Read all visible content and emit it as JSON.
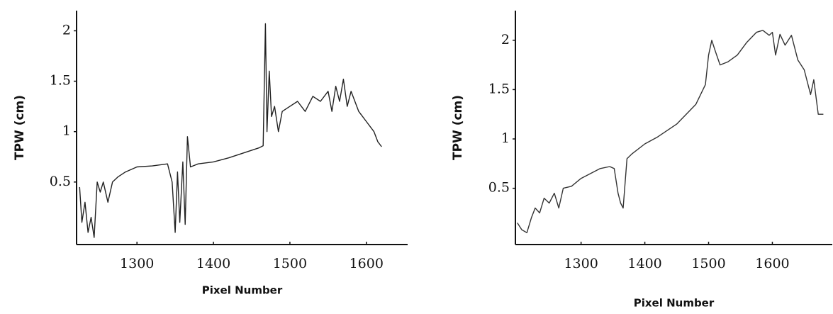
{
  "chart_data": [
    {
      "type": "line",
      "y_label": "TPW (cm)",
      "x_label": "Pixel Number",
      "color": "#222222",
      "x": [
        1225,
        1228,
        1232,
        1236,
        1240,
        1244,
        1248,
        1252,
        1256,
        1262,
        1268,
        1275,
        1285,
        1300,
        1320,
        1340,
        1346,
        1350,
        1353,
        1356,
        1360,
        1363,
        1366,
        1370,
        1380,
        1400,
        1420,
        1440,
        1460,
        1465,
        1468,
        1470,
        1473,
        1476,
        1480,
        1485,
        1490,
        1500,
        1510,
        1520,
        1530,
        1540,
        1550,
        1555,
        1560,
        1565,
        1570,
        1575,
        1580,
        1590,
        1600,
        1610,
        1615,
        1620
      ],
      "values": [
        0.45,
        0.1,
        0.3,
        0.0,
        0.15,
        -0.05,
        0.5,
        0.4,
        0.5,
        0.3,
        0.5,
        0.55,
        0.6,
        0.65,
        0.66,
        0.68,
        0.5,
        0.0,
        0.6,
        0.1,
        0.7,
        0.08,
        0.95,
        0.65,
        0.68,
        0.7,
        0.74,
        0.79,
        0.84,
        0.86,
        2.07,
        1.0,
        1.6,
        1.15,
        1.25,
        1.0,
        1.2,
        1.25,
        1.3,
        1.2,
        1.35,
        1.3,
        1.4,
        1.2,
        1.45,
        1.3,
        1.52,
        1.25,
        1.4,
        1.2,
        1.1,
        1.0,
        0.9,
        0.85
      ],
      "xlim": [
        1221,
        1654
      ],
      "ylim": [
        -0.12,
        2.2
      ],
      "xticks": [
        1300,
        1400,
        1500,
        1600
      ],
      "yticks": [
        0.5,
        1,
        1.5,
        2
      ]
    },
    {
      "type": "line",
      "y_label": "TPW (cm)",
      "x_label": "Pixel Number",
      "color": "#333333",
      "x": [
        1200,
        1207,
        1215,
        1222,
        1228,
        1235,
        1242,
        1250,
        1258,
        1265,
        1272,
        1285,
        1300,
        1315,
        1330,
        1345,
        1352,
        1358,
        1362,
        1366,
        1372,
        1380,
        1400,
        1420,
        1450,
        1480,
        1495,
        1500,
        1505,
        1510,
        1518,
        1530,
        1545,
        1560,
        1575,
        1585,
        1595,
        1600,
        1605,
        1612,
        1620,
        1630,
        1640,
        1650,
        1660,
        1665,
        1672,
        1680
      ],
      "values": [
        0.15,
        0.08,
        0.05,
        0.2,
        0.3,
        0.25,
        0.4,
        0.35,
        0.45,
        0.3,
        0.5,
        0.52,
        0.6,
        0.65,
        0.7,
        0.72,
        0.7,
        0.45,
        0.35,
        0.3,
        0.8,
        0.85,
        0.95,
        1.02,
        1.15,
        1.35,
        1.55,
        1.85,
        2.0,
        1.9,
        1.75,
        1.78,
        1.85,
        1.98,
        2.08,
        2.1,
        2.05,
        2.08,
        1.85,
        2.06,
        1.95,
        2.05,
        1.8,
        1.7,
        1.45,
        1.6,
        1.25,
        1.25
      ],
      "xlim": [
        1197,
        1694
      ],
      "ylim": [
        -0.07,
        2.3
      ],
      "xticks": [
        1300,
        1400,
        1500,
        1600
      ],
      "yticks": [
        0.5,
        1,
        1.5,
        2
      ]
    }
  ]
}
